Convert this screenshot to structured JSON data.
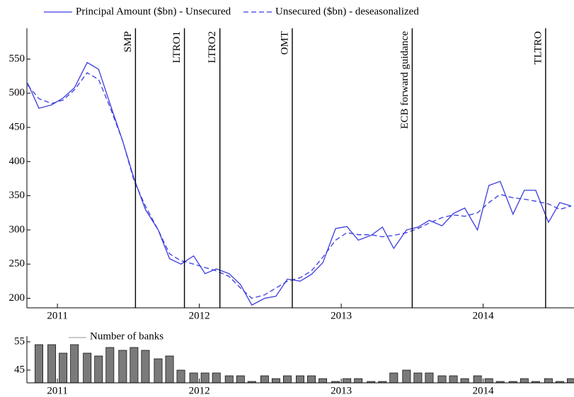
{
  "chart_data": [
    {
      "type": "line",
      "x": [
        2010.79,
        2010.87,
        2010.96,
        2011.04,
        2011.12,
        2011.21,
        2011.29,
        2011.37,
        2011.46,
        2011.54,
        2011.62,
        2011.71,
        2011.79,
        2011.87,
        2011.96,
        2012.04,
        2012.12,
        2012.21,
        2012.29,
        2012.37,
        2012.46,
        2012.54,
        2012.62,
        2012.71,
        2012.79,
        2012.87,
        2012.96,
        2013.04,
        2013.12,
        2013.21,
        2013.29,
        2013.37,
        2013.46,
        2013.54,
        2013.62,
        2013.71,
        2013.79,
        2013.87,
        2013.96,
        2014.04,
        2014.12,
        2014.21,
        2014.29,
        2014.37,
        2014.46,
        2014.54,
        2014.62
      ],
      "series": [
        {
          "name": "Principal Amount ($bn) - Unsecured",
          "color": "#3b3be0",
          "dash": false,
          "values": [
            515,
            478,
            483,
            493,
            508,
            545,
            535,
            485,
            430,
            375,
            330,
            300,
            258,
            250,
            262,
            236,
            243,
            236,
            220,
            190,
            200,
            203,
            228,
            225,
            235,
            252,
            302,
            305,
            285,
            292,
            304,
            273,
            300,
            304,
            314,
            306,
            324,
            332,
            300,
            365,
            371,
            323,
            358,
            358,
            311,
            340,
            335
          ]
        },
        {
          "name": "Unsecured ($bn) - deseasonalized",
          "color": "#3b3be0",
          "dash": true,
          "values": [
            512,
            492,
            485,
            490,
            505,
            530,
            520,
            480,
            430,
            372,
            335,
            300,
            265,
            255,
            250,
            245,
            240,
            232,
            215,
            200,
            205,
            215,
            225,
            230,
            240,
            260,
            285,
            296,
            293,
            293,
            290,
            292,
            296,
            302,
            310,
            318,
            322,
            320,
            325,
            340,
            352,
            347,
            345,
            342,
            338,
            330,
            335
          ]
        }
      ],
      "xlim": [
        2010.785,
        2014.64
      ],
      "xticks": [
        2011,
        2012,
        2013,
        2014
      ],
      "ylim": [
        186,
        595
      ],
      "yticks": [
        200,
        250,
        300,
        350,
        400,
        450,
        500,
        550
      ],
      "annotations": [
        {
          "label": "SMP",
          "x": 2011.55
        },
        {
          "label": "LTRO1",
          "x": 2011.895
        },
        {
          "label": "LTRO2",
          "x": 2012.145
        },
        {
          "label": "OMT",
          "x": 2012.655
        },
        {
          "label": "ECB forward guidance",
          "x": 2013.5
        },
        {
          "label": "TLTRO",
          "x": 2014.44
        }
      ]
    },
    {
      "type": "bar",
      "x": [
        2010.87,
        2010.96,
        2011.04,
        2011.12,
        2011.21,
        2011.29,
        2011.37,
        2011.46,
        2011.54,
        2011.62,
        2011.71,
        2011.79,
        2011.87,
        2011.96,
        2012.04,
        2012.12,
        2012.21,
        2012.29,
        2012.37,
        2012.46,
        2012.54,
        2012.62,
        2012.71,
        2012.79,
        2012.87,
        2012.96,
        2013.04,
        2013.12,
        2013.21,
        2013.29,
        2013.37,
        2013.46,
        2013.54,
        2013.62,
        2013.71,
        2013.79,
        2013.87,
        2013.96,
        2014.04,
        2014.12,
        2014.21,
        2014.29,
        2014.37,
        2014.46,
        2014.54,
        2014.62
      ],
      "series": [
        {
          "name": "Number of banks",
          "color": "#7a7a7a",
          "values": [
            54,
            54,
            51,
            54,
            51,
            50,
            53,
            52,
            53,
            52,
            49,
            50,
            45,
            44,
            44,
            44,
            43,
            43,
            41,
            43,
            42,
            43,
            43,
            43,
            42,
            41,
            42,
            42,
            41,
            41,
            44,
            45,
            44,
            44,
            43,
            43,
            42,
            43,
            42,
            41,
            41,
            42,
            41,
            42,
            41,
            42
          ]
        }
      ],
      "xlim": [
        2010.785,
        2014.64
      ],
      "xticks": [
        2011,
        2012,
        2013,
        2014
      ],
      "ylim": [
        40.5,
        57
      ],
      "yticks": [
        45,
        55
      ]
    }
  ]
}
